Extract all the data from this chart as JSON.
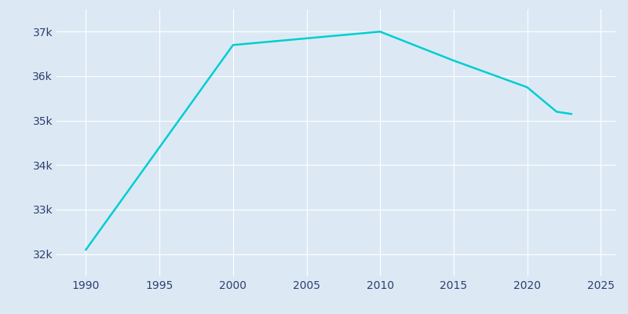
{
  "years": [
    1990,
    2000,
    2005,
    2010,
    2015,
    2020,
    2022,
    2023
  ],
  "population": [
    32100,
    36700,
    36850,
    37000,
    36350,
    35750,
    35200,
    35150
  ],
  "line_color": "#00CED1",
  "plot_bg_color": "#dce9f5",
  "fig_bg_color": "#e8f0f8",
  "grid_color": "#ffffff",
  "text_color": "#2e3f6e",
  "xlim": [
    1988,
    2026
  ],
  "ylim": [
    31500,
    37500
  ],
  "xticks": [
    1990,
    1995,
    2000,
    2005,
    2010,
    2015,
    2020,
    2025
  ],
  "yticks": [
    32000,
    33000,
    34000,
    35000,
    36000,
    37000
  ],
  "ytick_labels": [
    "32k",
    "33k",
    "34k",
    "35k",
    "36k",
    "37k"
  ],
  "linewidth": 1.8,
  "fontsize": 10
}
